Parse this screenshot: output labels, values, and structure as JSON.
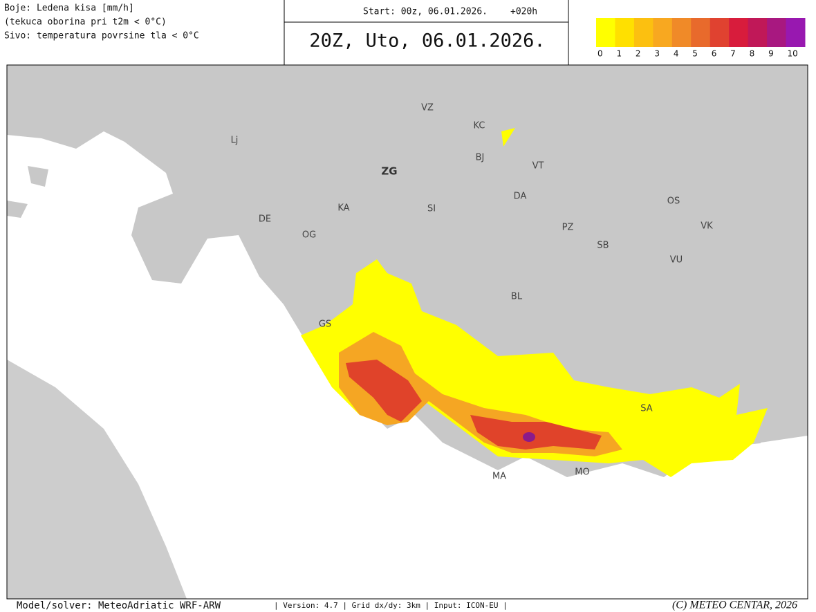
{
  "header": {
    "description": [
      "Boje: Ledena kisa [mm/h]",
      "(tekuca oborina pri t2m < 0°C)",
      "Sivo: temperatura povrsine tla < 0°C"
    ],
    "start": "Start: 00z, 06.01.2026.",
    "lead": "+020h",
    "valid": "20Z, Uto, 06.01.2026."
  },
  "colorbar": {
    "ticks": [
      0,
      1,
      2,
      3,
      4,
      5,
      6,
      7,
      8,
      9,
      10
    ],
    "colors": [
      "#ffff00",
      "#ffe000",
      "#fcc010",
      "#f8a820",
      "#f08a28",
      "#e86a2c",
      "#e04230",
      "#d81c3c",
      "#c01858",
      "#a81880",
      "#9818b0"
    ]
  },
  "places": [
    "Lj",
    "ZG",
    "VZ",
    "KC",
    "BJ",
    "VT",
    "KA",
    "SI",
    "DA",
    "OS",
    "VK",
    "DE",
    "OG",
    "PZ",
    "SB",
    "VU",
    "BL",
    "GS",
    "SA",
    "MA",
    "MO"
  ],
  "footer": {
    "model": "Model/solver: MeteoAdriatic WRF-ARW",
    "details": "| Version: 4.7 | Grid dx/dy: 3km | Input: ICON-EU |",
    "copyright": "(C) METEO CENTAR, 2026"
  }
}
